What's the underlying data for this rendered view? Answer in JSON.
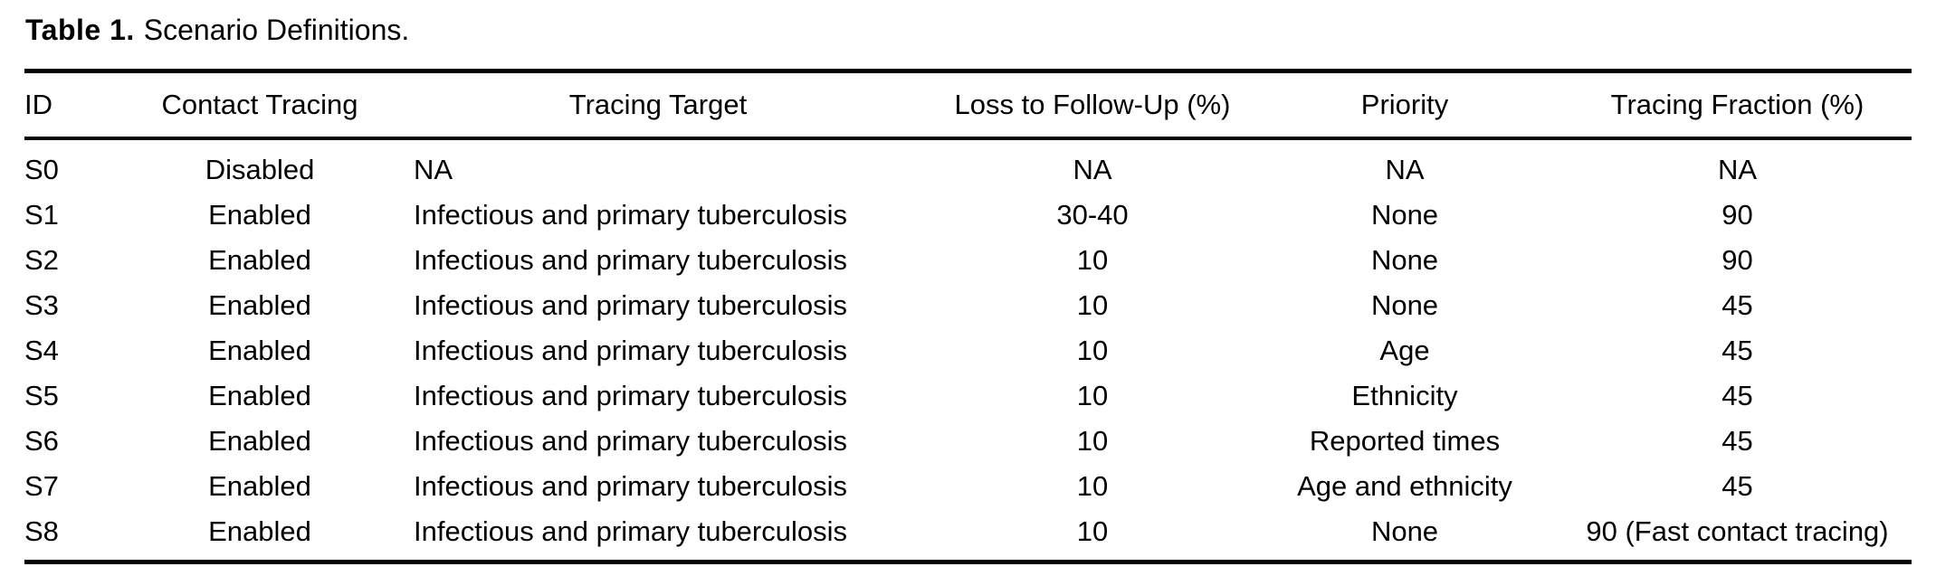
{
  "caption": {
    "label": "Table 1.",
    "text": "Scenario Definitions."
  },
  "table": {
    "columns": [
      {
        "key": "id",
        "label": "ID",
        "header_align": "left",
        "data_align": "left"
      },
      {
        "key": "contact-tracing",
        "label": "Contact Tracing",
        "header_align": "center",
        "data_align": "center"
      },
      {
        "key": "tracing-target",
        "label": "Tracing Target",
        "header_align": "center",
        "data_align": "left"
      },
      {
        "key": "loss-to-follow-up",
        "label": "Loss to Follow-Up (%)",
        "header_align": "center",
        "data_align": "center"
      },
      {
        "key": "priority",
        "label": "Priority",
        "header_align": "center",
        "data_align": "center"
      },
      {
        "key": "tracing-fraction",
        "label": "Tracing Fraction (%)",
        "header_align": "center",
        "data_align": "center"
      }
    ],
    "rows": [
      [
        "S0",
        "Disabled",
        "NA",
        "NA",
        "NA",
        "NA"
      ],
      [
        "S1",
        "Enabled",
        "Infectious and primary tuberculosis",
        "30-40",
        "None",
        "90"
      ],
      [
        "S2",
        "Enabled",
        "Infectious and primary tuberculosis",
        "10",
        "None",
        "90"
      ],
      [
        "S3",
        "Enabled",
        "Infectious and primary tuberculosis",
        "10",
        "None",
        "45"
      ],
      [
        "S4",
        "Enabled",
        "Infectious and primary tuberculosis",
        "10",
        "Age",
        "45"
      ],
      [
        "S5",
        "Enabled",
        "Infectious and primary tuberculosis",
        "10",
        "Ethnicity",
        "45"
      ],
      [
        "S6",
        "Enabled",
        "Infectious and primary tuberculosis",
        "10",
        "Reported times",
        "45"
      ],
      [
        "S7",
        "Enabled",
        "Infectious and primary tuberculosis",
        "10",
        "Age and ethnicity",
        "45"
      ],
      [
        "S8",
        "Enabled",
        "Infectious and primary tuberculosis",
        "10",
        "None",
        "90 (Fast contact tracing)"
      ]
    ]
  },
  "colors": {
    "text": "#000000",
    "background": "#ffffff",
    "rule": "#000000"
  }
}
